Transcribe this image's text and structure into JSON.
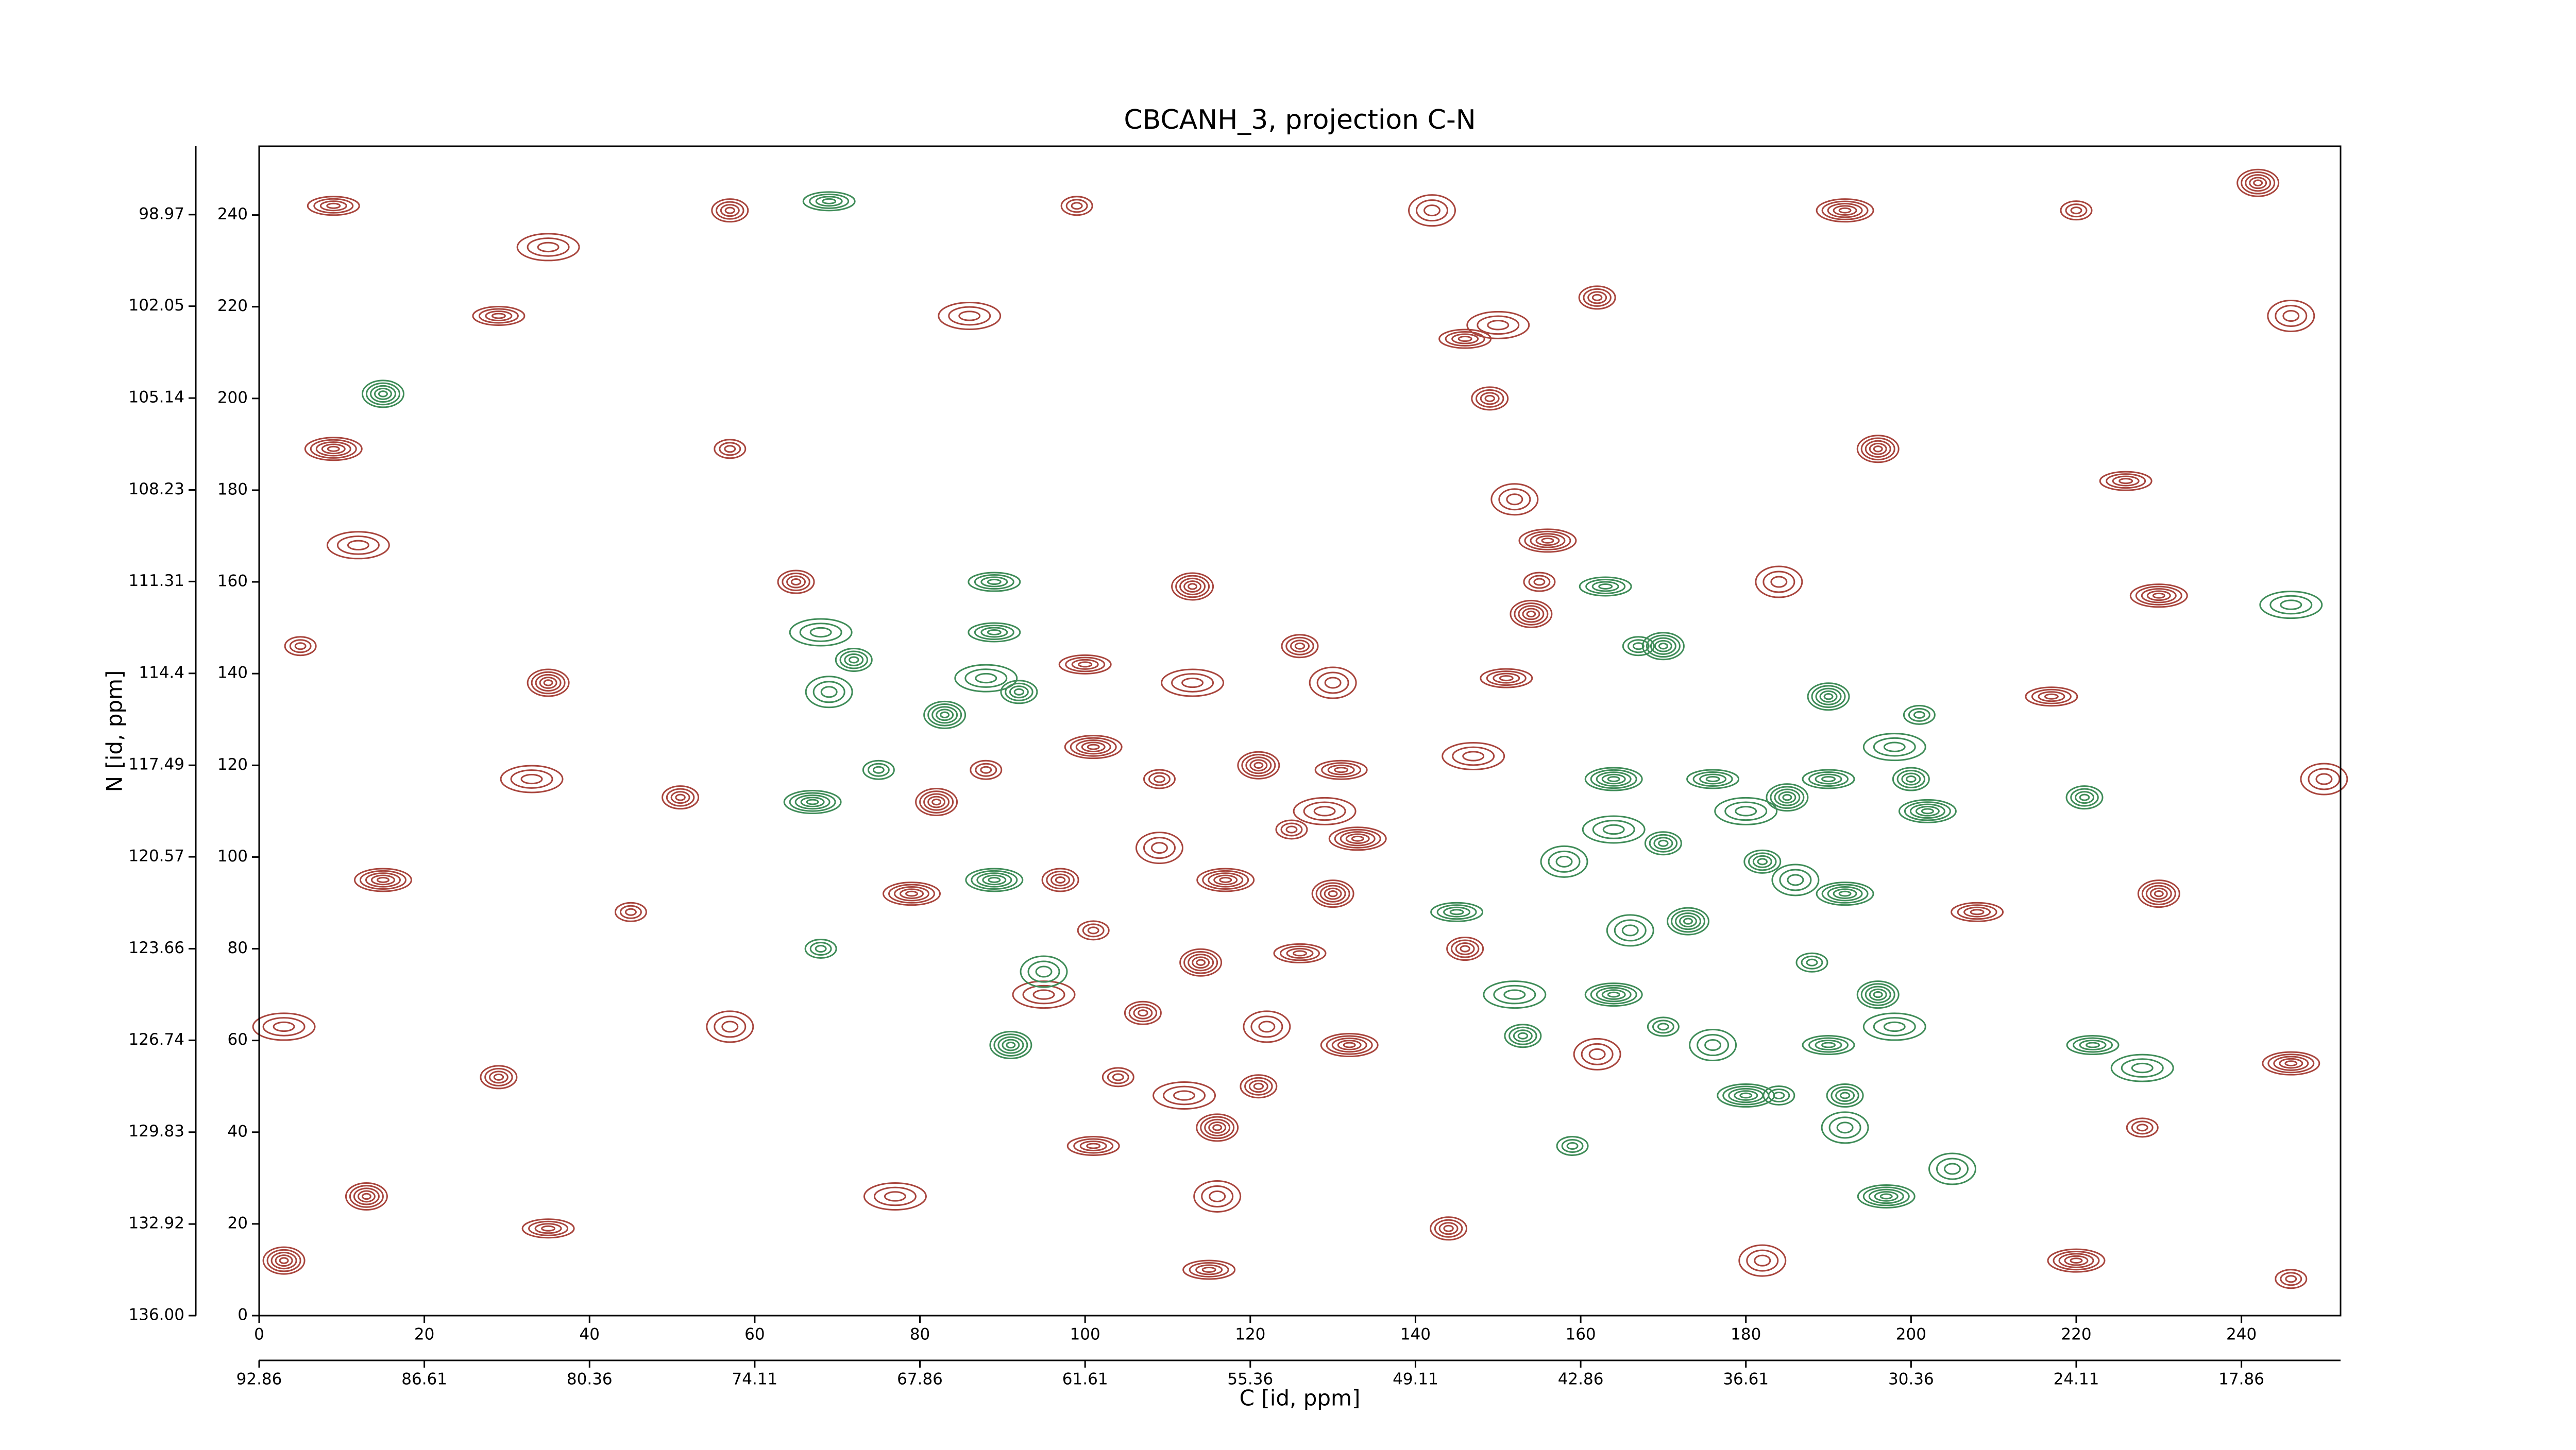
{
  "chart_data": {
    "type": "contour",
    "title": "CBCANH_3, projection C-N",
    "xlabel": "C [id, ppm]",
    "ylabel": "N [id, ppm]",
    "xlim": [
      0,
      252
    ],
    "xticks": [
      0,
      20,
      40,
      60,
      80,
      100,
      120,
      140,
      160,
      180,
      200,
      220,
      240
    ],
    "ylim": [
      0,
      255
    ],
    "yticks": [
      0,
      20,
      40,
      60,
      80,
      100,
      120,
      140,
      160,
      180,
      200,
      220,
      240
    ],
    "x2lim": [
      92.86,
      14.11
    ],
    "x2ticks": [
      92.86,
      86.61,
      80.36,
      74.11,
      67.86,
      61.61,
      55.36,
      49.11,
      42.86,
      36.61,
      30.36,
      24.11,
      17.86
    ],
    "y2lim": [
      136,
      96.67
    ],
    "y2ticks": [
      {
        "value": 136,
        "label": "136.00"
      },
      132.92,
      129.83,
      126.74,
      123.66,
      120.57,
      117.49,
      114.4,
      111.31,
      108.23,
      105.14,
      102.05,
      98.97
    ],
    "series": [
      {
        "color": "#a8453d",
        "x": [
          99,
          113,
          100,
          113,
          126,
          130,
          101,
          109,
          121,
          131,
          129,
          97,
          109,
          117,
          101,
          114,
          126,
          95,
          107,
          122,
          132,
          104,
          116,
          101,
          112,
          121,
          116,
          79,
          88,
          82,
          146,
          150,
          149,
          152,
          156,
          155,
          154,
          151,
          147,
          146,
          162,
          133,
          125,
          130,
          9,
          35,
          57,
          142,
          192,
          220,
          242,
          29,
          86,
          162,
          246,
          9,
          57,
          196,
          226,
          12,
          65,
          184,
          230,
          5,
          35,
          217,
          33,
          51,
          250,
          15,
          45,
          230,
          208,
          3,
          29,
          57,
          246,
          228,
          13,
          35,
          77,
          144,
          182,
          220,
          246,
          3,
          115
        ],
        "y": [
          242,
          159,
          142,
          138,
          146,
          138,
          124,
          117,
          120,
          119,
          110,
          95,
          102,
          95,
          84,
          77,
          79,
          70,
          66,
          63,
          59,
          52,
          41,
          37,
          48,
          50,
          26,
          92,
          119,
          112,
          213,
          216,
          200,
          178,
          169,
          160,
          153,
          139,
          122,
          80,
          57,
          104,
          106,
          92,
          242,
          233,
          241,
          241,
          241,
          241,
          247,
          218,
          218,
          222,
          218,
          189,
          189,
          189,
          182,
          168,
          160,
          160,
          157,
          146,
          138,
          135,
          117,
          113,
          117,
          95,
          88,
          92,
          88,
          63,
          52,
          63,
          55,
          41,
          26,
          19,
          26,
          19,
          12,
          12,
          8,
          12,
          10
        ]
      },
      {
        "color": "#3f8c58",
        "x": [
          69,
          68,
          72,
          69,
          67,
          75,
          83,
          89,
          88,
          92,
          95,
          89,
          68,
          91,
          145,
          152,
          153,
          158,
          164,
          167,
          170,
          163,
          164,
          170,
          166,
          164,
          170,
          173,
          176,
          180,
          182,
          176,
          180,
          184,
          190,
          190,
          198,
          200,
          186,
          192,
          188,
          196,
          190,
          198,
          192,
          192,
          202,
          201,
          185,
          222,
          228,
          221,
          205,
          197,
          159,
          15,
          89,
          246
        ],
        "y": [
          243,
          149,
          143,
          136,
          112,
          119,
          131,
          149,
          139,
          136,
          75,
          95,
          80,
          59,
          88,
          70,
          61,
          99,
          117,
          146,
          146,
          159,
          106,
          103,
          84,
          70,
          63,
          86,
          117,
          110,
          99,
          59,
          48,
          48,
          135,
          117,
          124,
          117,
          95,
          92,
          77,
          70,
          59,
          63,
          48,
          41,
          110,
          131,
          113,
          59,
          54,
          113,
          32,
          26,
          37,
          201,
          160,
          155
        ]
      }
    ]
  }
}
